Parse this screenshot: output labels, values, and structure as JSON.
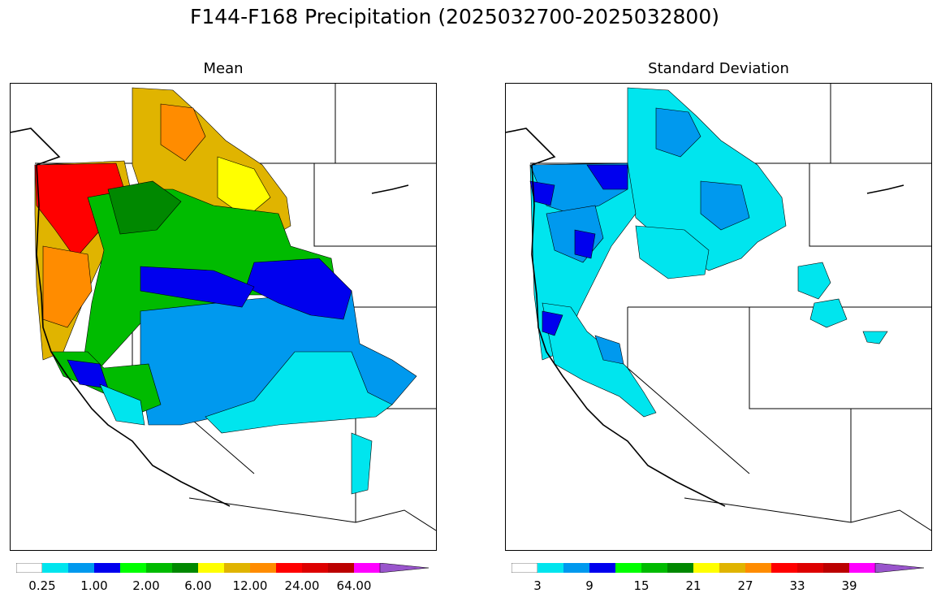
{
  "title": "F144-F168 Precipitation (2025032700-2025032800)",
  "panels": [
    {
      "title": "Mean",
      "colorbar": {
        "colors": [
          "#ffffff",
          "#00e5ee",
          "#0099ee",
          "#0000ee",
          "#00ff00",
          "#00bb00",
          "#008800",
          "#ffff00",
          "#e0b400",
          "#ff8c00",
          "#ff0000",
          "#dd0000",
          "#bb0000",
          "#ff00ff",
          "#9955cc"
        ],
        "tick_labels": [
          "0.25",
          "1.00",
          "2.00",
          "6.00",
          "12.00",
          "24.00",
          "64.00"
        ]
      }
    },
    {
      "title": "Standard Deviation",
      "colorbar": {
        "colors": [
          "#ffffff",
          "#00e5ee",
          "#0099ee",
          "#0000ee",
          "#00ff00",
          "#00bb00",
          "#008800",
          "#ffff00",
          "#e0b400",
          "#ff8c00",
          "#ff0000",
          "#dd0000",
          "#bb0000",
          "#ff00ff",
          "#9955cc"
        ],
        "tick_labels": [
          "3",
          "9",
          "15",
          "21",
          "27",
          "33",
          "39"
        ]
      }
    }
  ]
}
